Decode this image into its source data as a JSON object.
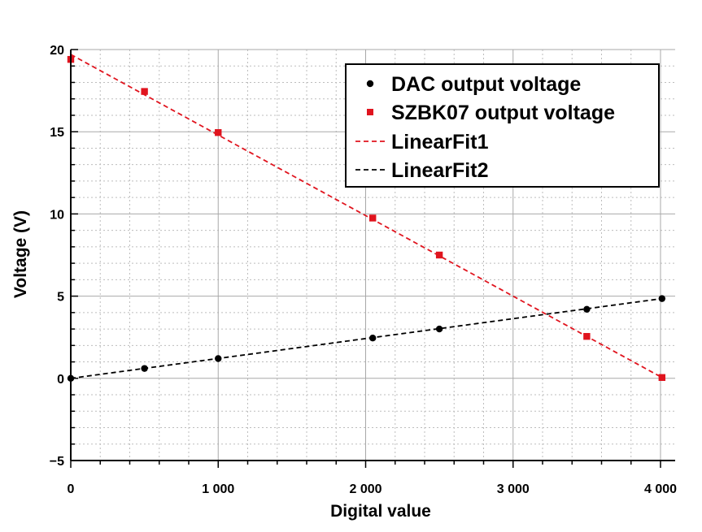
{
  "chart_data": {
    "type": "scatter",
    "title": "",
    "xlabel": "Digital value",
    "ylabel": "Voltage (V)",
    "xlim": [
      0,
      4100
    ],
    "ylim": [
      -5,
      20
    ],
    "x_ticks": [
      0,
      1000,
      2000,
      3000,
      4000
    ],
    "x_tick_labels": [
      "0",
      "1 000",
      "2 000",
      "3 000",
      "4 000"
    ],
    "y_ticks": [
      -5,
      0,
      5,
      10,
      15,
      20
    ],
    "y_tick_labels": [
      "−5",
      "0",
      "5",
      "10",
      "15",
      "20"
    ],
    "grid": true,
    "legend_position": "top-right",
    "series": [
      {
        "name": "DAC output voltage",
        "kind": "points",
        "marker": "circle",
        "color": "#000000",
        "x": [
          0,
          500,
          1000,
          2048,
          2500,
          3500,
          4010
        ],
        "y": [
          0.0,
          0.6,
          1.2,
          2.45,
          3.0,
          4.2,
          4.85
        ]
      },
      {
        "name": "SZBK07 output voltage",
        "kind": "points",
        "marker": "square",
        "color": "#e0141e",
        "x": [
          0,
          500,
          1000,
          2048,
          2500,
          3500,
          4010
        ],
        "y": [
          19.4,
          17.45,
          14.95,
          9.75,
          7.5,
          2.55,
          0.05
        ]
      },
      {
        "name": "LinearFit1",
        "kind": "line",
        "dash": true,
        "color": "#e0141e",
        "x": [
          0,
          4010
        ],
        "y": [
          19.7,
          0.05
        ]
      },
      {
        "name": "LinearFit2",
        "kind": "line",
        "dash": true,
        "color": "#000000",
        "x": [
          0,
          4010
        ],
        "y": [
          0.0,
          4.85
        ]
      }
    ]
  }
}
